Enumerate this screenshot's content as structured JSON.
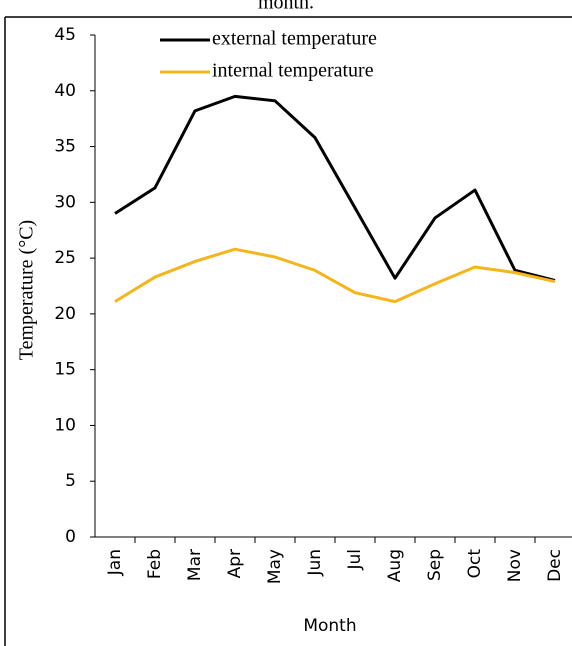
{
  "chart_data": {
    "type": "line",
    "caption": "month.",
    "x_label": "Month",
    "y_label": "Temperature (°C)",
    "categories": [
      "Jan",
      "Feb",
      "Mar",
      "Apr",
      "May",
      "Jun",
      "Jul",
      "Aug",
      "Sep",
      "Oct",
      "Nov",
      "Dec"
    ],
    "series": [
      {
        "name": "external temperature",
        "color": "#000000",
        "values": [
          29.0,
          31.3,
          38.2,
          39.5,
          39.1,
          35.8,
          29.5,
          23.2,
          28.6,
          31.1,
          23.9,
          23.0
        ]
      },
      {
        "name": "internal temperature",
        "color": "#f5b51b",
        "values": [
          21.1,
          23.3,
          24.7,
          25.8,
          25.1,
          23.9,
          21.9,
          21.1,
          22.7,
          24.2,
          23.7,
          22.9
        ]
      }
    ],
    "ylim": [
      0,
      45
    ],
    "yticks": [
      0,
      5,
      10,
      15,
      20,
      25,
      30,
      35,
      40,
      45
    ],
    "legend": "upper left"
  }
}
